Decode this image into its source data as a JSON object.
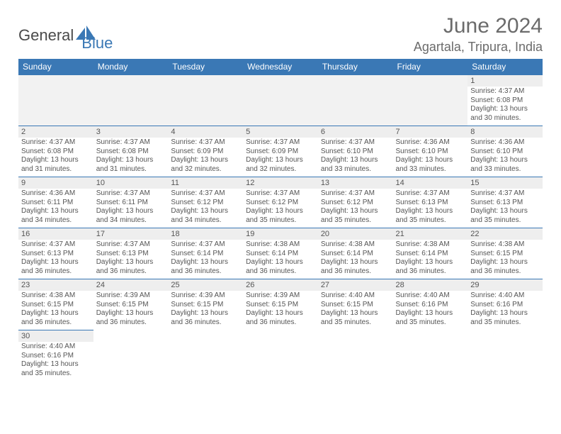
{
  "brand": {
    "part1": "General",
    "part2": "Blue",
    "accent": "#3a78b5"
  },
  "title": {
    "month": "June 2024",
    "location": "Agartala, Tripura, India"
  },
  "weekdays": [
    "Sunday",
    "Monday",
    "Tuesday",
    "Wednesday",
    "Thursday",
    "Friday",
    "Saturday"
  ],
  "calendar": {
    "type": "table",
    "header_bg": "#3a78b5",
    "header_fg": "#ffffff",
    "cell_border": "#3a78b5",
    "daynum_bg": "#eeeeee",
    "font_size_header": 12,
    "font_size_daynum": 11,
    "font_size_body": 10,
    "columns": 7,
    "rows": [
      [
        null,
        null,
        null,
        null,
        null,
        null,
        {
          "n": "1",
          "sr": "4:37 AM",
          "ss": "6:08 PM",
          "dl": "13 hours and 30 minutes."
        }
      ],
      [
        {
          "n": "2",
          "sr": "4:37 AM",
          "ss": "6:08 PM",
          "dl": "13 hours and 31 minutes."
        },
        {
          "n": "3",
          "sr": "4:37 AM",
          "ss": "6:08 PM",
          "dl": "13 hours and 31 minutes."
        },
        {
          "n": "4",
          "sr": "4:37 AM",
          "ss": "6:09 PM",
          "dl": "13 hours and 32 minutes."
        },
        {
          "n": "5",
          "sr": "4:37 AM",
          "ss": "6:09 PM",
          "dl": "13 hours and 32 minutes."
        },
        {
          "n": "6",
          "sr": "4:37 AM",
          "ss": "6:10 PM",
          "dl": "13 hours and 33 minutes."
        },
        {
          "n": "7",
          "sr": "4:36 AM",
          "ss": "6:10 PM",
          "dl": "13 hours and 33 minutes."
        },
        {
          "n": "8",
          "sr": "4:36 AM",
          "ss": "6:10 PM",
          "dl": "13 hours and 33 minutes."
        }
      ],
      [
        {
          "n": "9",
          "sr": "4:36 AM",
          "ss": "6:11 PM",
          "dl": "13 hours and 34 minutes."
        },
        {
          "n": "10",
          "sr": "4:37 AM",
          "ss": "6:11 PM",
          "dl": "13 hours and 34 minutes."
        },
        {
          "n": "11",
          "sr": "4:37 AM",
          "ss": "6:12 PM",
          "dl": "13 hours and 34 minutes."
        },
        {
          "n": "12",
          "sr": "4:37 AM",
          "ss": "6:12 PM",
          "dl": "13 hours and 35 minutes."
        },
        {
          "n": "13",
          "sr": "4:37 AM",
          "ss": "6:12 PM",
          "dl": "13 hours and 35 minutes."
        },
        {
          "n": "14",
          "sr": "4:37 AM",
          "ss": "6:13 PM",
          "dl": "13 hours and 35 minutes."
        },
        {
          "n": "15",
          "sr": "4:37 AM",
          "ss": "6:13 PM",
          "dl": "13 hours and 35 minutes."
        }
      ],
      [
        {
          "n": "16",
          "sr": "4:37 AM",
          "ss": "6:13 PM",
          "dl": "13 hours and 36 minutes."
        },
        {
          "n": "17",
          "sr": "4:37 AM",
          "ss": "6:13 PM",
          "dl": "13 hours and 36 minutes."
        },
        {
          "n": "18",
          "sr": "4:37 AM",
          "ss": "6:14 PM",
          "dl": "13 hours and 36 minutes."
        },
        {
          "n": "19",
          "sr": "4:38 AM",
          "ss": "6:14 PM",
          "dl": "13 hours and 36 minutes."
        },
        {
          "n": "20",
          "sr": "4:38 AM",
          "ss": "6:14 PM",
          "dl": "13 hours and 36 minutes."
        },
        {
          "n": "21",
          "sr": "4:38 AM",
          "ss": "6:14 PM",
          "dl": "13 hours and 36 minutes."
        },
        {
          "n": "22",
          "sr": "4:38 AM",
          "ss": "6:15 PM",
          "dl": "13 hours and 36 minutes."
        }
      ],
      [
        {
          "n": "23",
          "sr": "4:38 AM",
          "ss": "6:15 PM",
          "dl": "13 hours and 36 minutes."
        },
        {
          "n": "24",
          "sr": "4:39 AM",
          "ss": "6:15 PM",
          "dl": "13 hours and 36 minutes."
        },
        {
          "n": "25",
          "sr": "4:39 AM",
          "ss": "6:15 PM",
          "dl": "13 hours and 36 minutes."
        },
        {
          "n": "26",
          "sr": "4:39 AM",
          "ss": "6:15 PM",
          "dl": "13 hours and 36 minutes."
        },
        {
          "n": "27",
          "sr": "4:40 AM",
          "ss": "6:15 PM",
          "dl": "13 hours and 35 minutes."
        },
        {
          "n": "28",
          "sr": "4:40 AM",
          "ss": "6:16 PM",
          "dl": "13 hours and 35 minutes."
        },
        {
          "n": "29",
          "sr": "4:40 AM",
          "ss": "6:16 PM",
          "dl": "13 hours and 35 minutes."
        }
      ],
      [
        {
          "n": "30",
          "sr": "4:40 AM",
          "ss": "6:16 PM",
          "dl": "13 hours and 35 minutes."
        },
        null,
        null,
        null,
        null,
        null,
        null
      ]
    ]
  },
  "labels": {
    "sunrise": "Sunrise: ",
    "sunset": "Sunset: ",
    "daylight": "Daylight: "
  }
}
